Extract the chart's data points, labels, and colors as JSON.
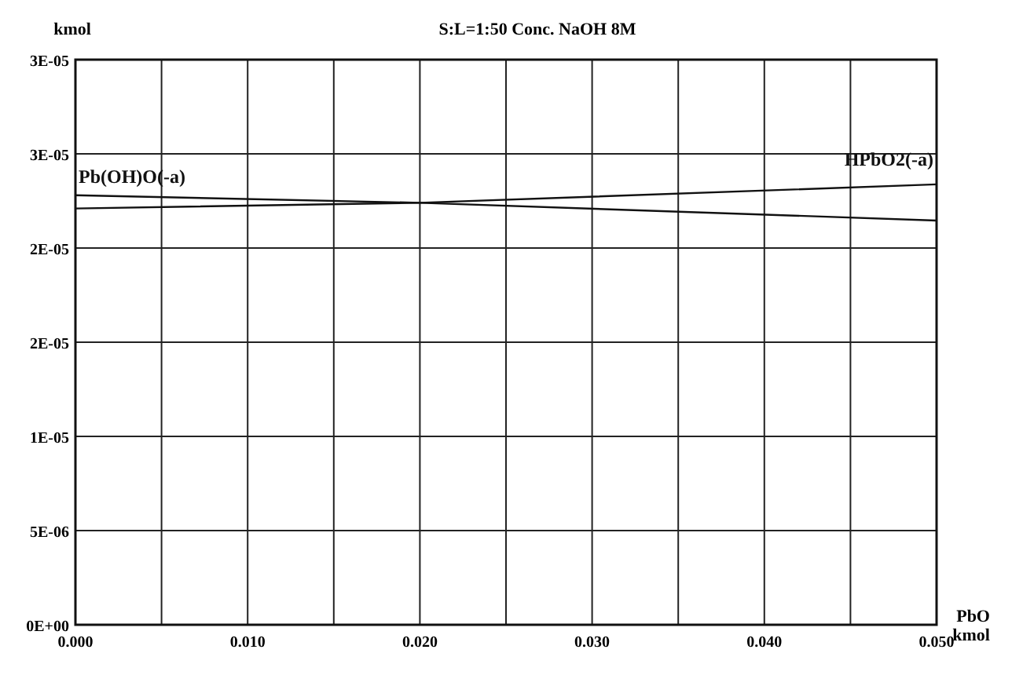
{
  "chart_data": {
    "type": "line",
    "title": "S:L=1:50 Conc. NaOH 8M",
    "ylabel": "kmol",
    "xlabel": "PbO\nkmol",
    "x": [
      0,
      0.02,
      0.05
    ],
    "series": [
      {
        "name": "Pb(OH)O(-a)",
        "color": "#111111",
        "values": [
          2.28e-05,
          2.24e-05,
          2.146e-05
        ]
      },
      {
        "name": "HPbO2(-a)",
        "color": "#111111",
        "values": [
          2.21e-05,
          2.24e-05,
          2.338e-05
        ]
      }
    ],
    "xlim": [
      0,
      0.05
    ],
    "xticks": [
      {
        "value": 0,
        "label": "0.000"
      },
      {
        "value": 0.005,
        "label": null
      },
      {
        "value": 0.01,
        "label": "0.010"
      },
      {
        "value": 0.015,
        "label": null
      },
      {
        "value": 0.02,
        "label": "0.020"
      },
      {
        "value": 0.025,
        "label": null
      },
      {
        "value": 0.03,
        "label": "0.030"
      },
      {
        "value": 0.035,
        "label": null
      },
      {
        "value": 0.04,
        "label": "0.040"
      },
      {
        "value": 0.045,
        "label": null
      },
      {
        "value": 0.05,
        "label": "0.050"
      }
    ],
    "ylim": [
      0,
      3e-05
    ],
    "yticks": [
      {
        "value": 0,
        "label": "0E+00"
      },
      {
        "value": 5e-06,
        "label": "5E-06"
      },
      {
        "value": 1e-05,
        "label": "1E-05"
      },
      {
        "value": 1.5e-05,
        "label": "2E-05"
      },
      {
        "value": 2e-05,
        "label": "2E-05"
      },
      {
        "value": 2.5e-05,
        "label": "3E-05"
      },
      {
        "value": 3e-05,
        "label": "3E-05"
      }
    ],
    "grid": true,
    "legend": false,
    "marker": "none",
    "line_style": "solid"
  }
}
